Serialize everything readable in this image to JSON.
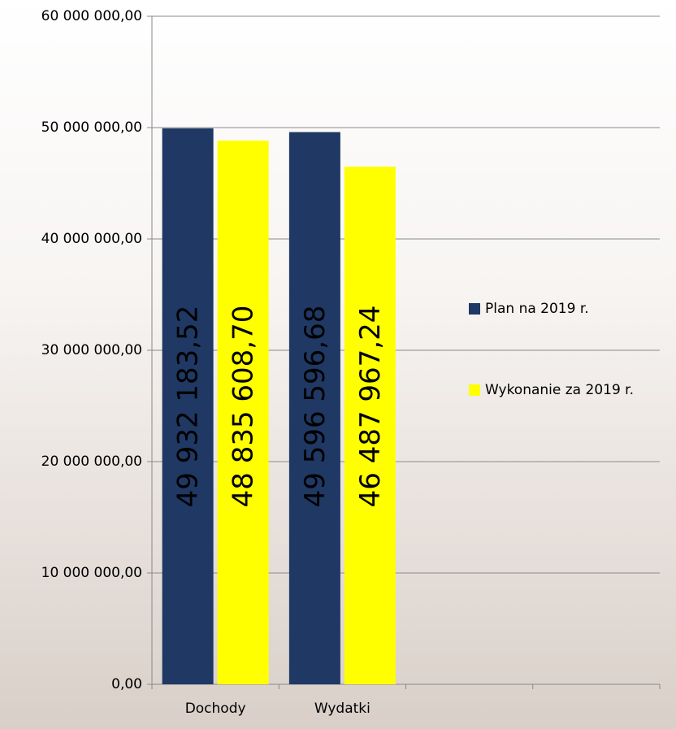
{
  "chart_data": {
    "type": "bar",
    "categories": [
      "Dochody",
      "Wydatki",
      null,
      null
    ],
    "series": [
      {
        "name": "Plan na 2019 r.",
        "color": "#1f3864",
        "values": [
          49932183.52,
          49596596.68,
          null,
          null
        ],
        "value_labels": [
          "49 932 183,52",
          "49 596 596,68",
          null,
          null
        ]
      },
      {
        "name": "Wykonanie za 2019 r.",
        "color": "#ffff00",
        "values": [
          48835608.7,
          46487967.24,
          null,
          null
        ],
        "value_labels": [
          "48 835 608,70",
          "46 487 967,24",
          null,
          null
        ]
      }
    ],
    "ylim": [
      0,
      60000000
    ],
    "yticks": [
      {
        "value": 0,
        "label": "0,00"
      },
      {
        "value": 10000000,
        "label": "10 000 000,00"
      },
      {
        "value": 20000000,
        "label": "20 000 000,00"
      },
      {
        "value": 30000000,
        "label": "30 000 000,00"
      },
      {
        "value": 40000000,
        "label": "40 000 000,00"
      },
      {
        "value": 50000000,
        "label": "50 000 000,00"
      },
      {
        "value": 60000000,
        "label": "60 000 000,00"
      }
    ],
    "grid": true,
    "legend": "right"
  }
}
